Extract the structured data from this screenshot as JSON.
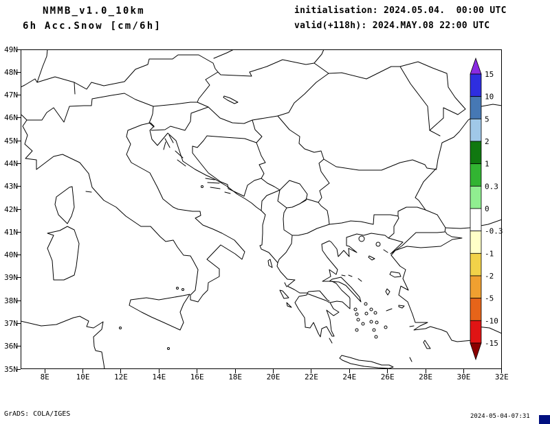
{
  "header": {
    "model": "NMMB_v1.0_10km",
    "field": "6h Acc.Snow [cm/6h]",
    "init": "initialisation: 2024.05.04.  00:00 UTC",
    "valid": "valid(+118h): 2024.MAY.08 22:00 UTC"
  },
  "axes": {
    "lat_labels": [
      "49N",
      "48N",
      "47N",
      "46N",
      "45N",
      "44N",
      "43N",
      "42N",
      "41N",
      "40N",
      "39N",
      "38N",
      "37N",
      "36N",
      "35N"
    ],
    "lon_labels": [
      "8E",
      "10E",
      "12E",
      "14E",
      "16E",
      "18E",
      "20E",
      "22E",
      "24E",
      "26E",
      "28E",
      "30E",
      "32E"
    ]
  },
  "colorbar": {
    "units": "cm/6h",
    "labels": [
      "15",
      "10",
      "5",
      "2",
      "1",
      "0.3",
      "0",
      "-0.3",
      "-1",
      "-2",
      "-5",
      "-10",
      "-15"
    ],
    "colors": [
      "#8A2BE2",
      "#2E2EE0",
      "#4678B4",
      "#A0C8E8",
      "#107810",
      "#32B432",
      "#90EE90",
      "#FFFFFF",
      "#FFFFC8",
      "#F2D249",
      "#F0A030",
      "#E66419",
      "#E01414",
      "#8B0000"
    ]
  },
  "footer": {
    "credit": "GrADS: COLA/IGES",
    "timestamp": "2024-05-04-07:31"
  }
}
